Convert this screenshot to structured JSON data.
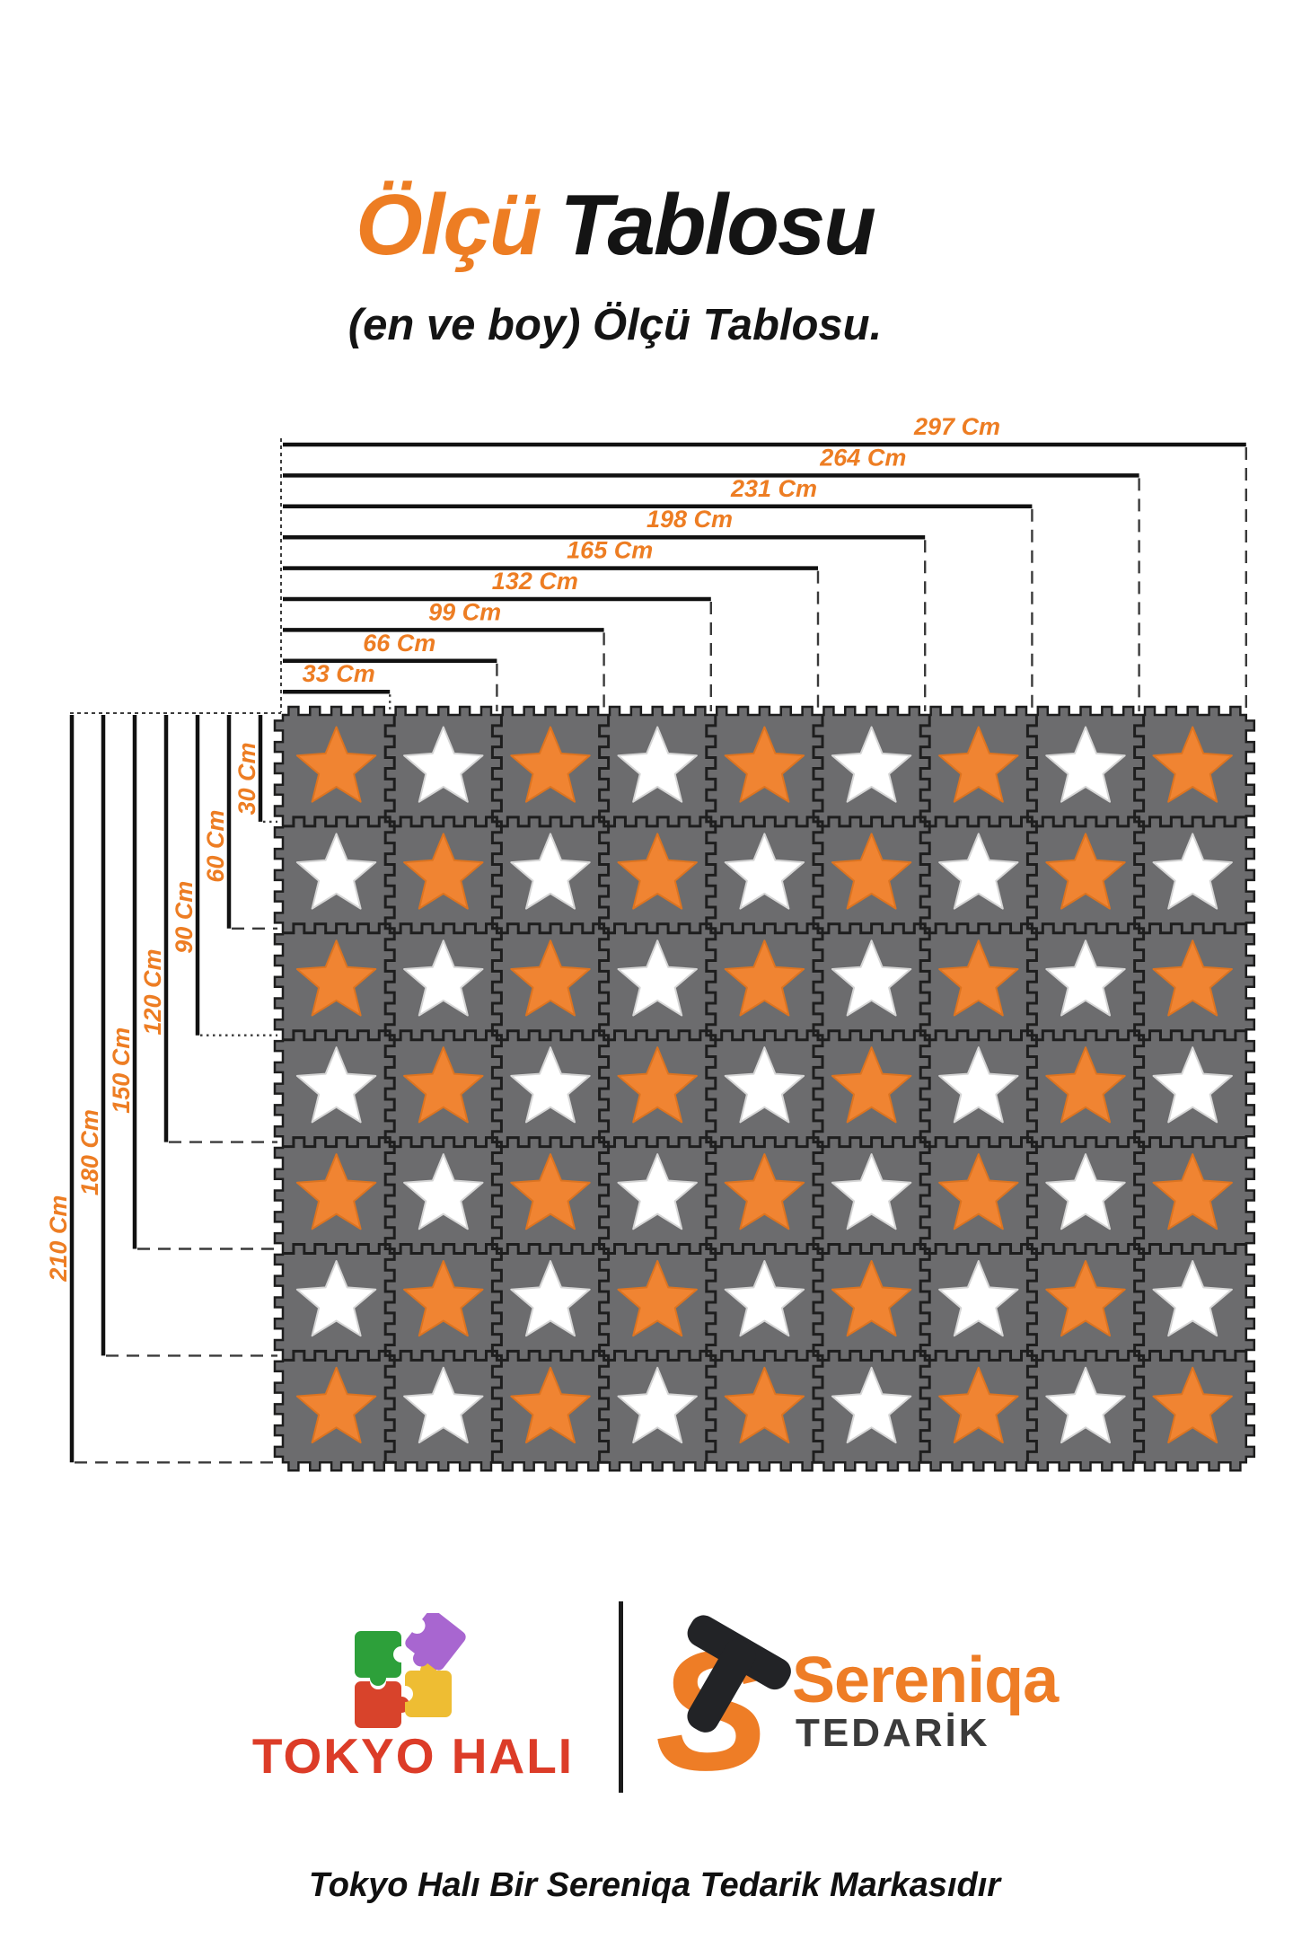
{
  "header": {
    "title_accent": "Ölçü",
    "title_rest": "Tablosu",
    "title_accent_color": "#ED7D23",
    "subtitle": "(en ve boy) Ölçü Tablosu."
  },
  "diagram": {
    "unit": "Cm",
    "width_dimensions": [
      {
        "label": "297 Cm",
        "cm": 297
      },
      {
        "label": "264 Cm",
        "cm": 264
      },
      {
        "label": "231 Cm",
        "cm": 231
      },
      {
        "label": "198 Cm",
        "cm": 198
      },
      {
        "label": "165 Cm",
        "cm": 165
      },
      {
        "label": "132 Cm",
        "cm": 132
      },
      {
        "label": "99 Cm",
        "cm": 99
      },
      {
        "label": "66 Cm",
        "cm": 66
      },
      {
        "label": "33 Cm",
        "cm": 33
      }
    ],
    "height_dimensions": [
      {
        "label": "210 Cm",
        "cm": 210
      },
      {
        "label": "180 Cm",
        "cm": 180
      },
      {
        "label": "150 Cm",
        "cm": 150
      },
      {
        "label": "120 Cm",
        "cm": 120
      },
      {
        "label": "90 Cm",
        "cm": 90
      },
      {
        "label": "60 Cm",
        "cm": 60
      },
      {
        "label": "30 Cm",
        "cm": 30
      }
    ],
    "tile": {
      "width_cm": 33,
      "height_cm": 30
    },
    "grid": {
      "cols": 9,
      "rows": 7,
      "pattern": [
        "OWOWOWOWO",
        "WOWOWOWOW",
        "OWOWOWOWO",
        "WOWOWOWOW",
        "OWOWOWOWO",
        "WOWOWOWOW",
        "OWOWOWOWO"
      ],
      "legend": {
        "O": "orange-star",
        "W": "white-star"
      }
    },
    "colors": {
      "label_orange": "#ED7D23",
      "line": "#111111",
      "guide": "#3D3D3D",
      "tile_gray": "#6C6C6E",
      "seam": "#1E1E1E",
      "star_orange": "#F08432",
      "star_orange_edge": "#DD7420",
      "star_white": "#FFFFFF",
      "star_white_edge": "#D6D6D6"
    }
  },
  "footer": {
    "tokyo_hali": {
      "wordmark": "TOKYO HALI",
      "color": "#DC3C28",
      "puzzle_colors": {
        "green": "#2DA03A",
        "purple": "#A866D0",
        "red": "#D8432B",
        "yellow": "#EEBD33"
      }
    },
    "sereniqa": {
      "monogram": "S",
      "name": "Sereniqa",
      "subtitle": "TEDARİK",
      "orange": "#EE7D26",
      "dark": "#3B3B3B"
    },
    "tagline": "Tokyo Halı Bir Sereniqa Tedarik Markasıdır"
  }
}
